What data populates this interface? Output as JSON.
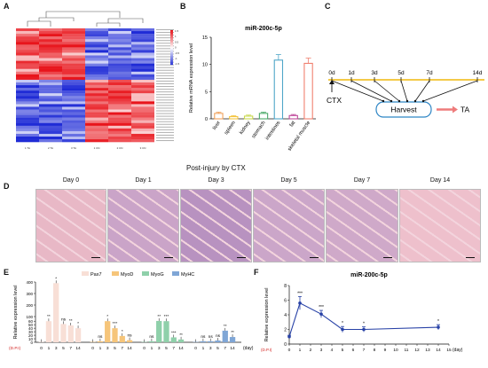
{
  "panels": {
    "a": "A",
    "b": "B",
    "c": "C",
    "d": "D",
    "e": "E",
    "f": "F"
  },
  "heatmap": {
    "colorbar_ticks": [
      "1.5",
      "1",
      "0.5",
      "0",
      "-0.5",
      "-1",
      "-1.5"
    ],
    "column_labels": [
      "1 TA",
      "2 TA",
      "3 TA",
      "1 CN",
      "2 CN",
      "3 CN"
    ],
    "colors": {
      "high": "#e8141b",
      "mid": "#ffffff",
      "low": "#1f2bd6"
    }
  },
  "chart_b": {
    "type": "bar",
    "title": "miR-200c-5p",
    "ylabel": "Relative mRNA expression level",
    "ylim": [
      0,
      15
    ],
    "yticks": [
      "0",
      "5",
      "10",
      "15"
    ],
    "categories": [
      "liver",
      "spleen",
      "kidney",
      "stomach",
      "intestines",
      "fat",
      "skeletal muscle"
    ],
    "values": [
      1.0,
      0.4,
      0.5,
      1.0,
      10.8,
      0.6,
      10.2
    ],
    "colors": [
      "#f0a35e",
      "#f4c542",
      "#c9d84e",
      "#4daa6a",
      "#4fa6c8",
      "#c04a9b",
      "#f08070"
    ]
  },
  "diagram_c": {
    "days": [
      "0d",
      "1d",
      "3d",
      "5d",
      "7d",
      "14d"
    ],
    "injury": "CTX",
    "harvest": "Harvest",
    "target": "TA"
  },
  "panel_d": {
    "title": "Post-injury by CTX",
    "days": [
      "Day 0",
      "Day 1",
      "Day 3",
      "Day 5",
      "Day 7",
      "Day 14"
    ]
  },
  "chart_e": {
    "type": "bar",
    "ylabel": "Relative expression level",
    "yticks": [
      "0",
      "10",
      "20",
      "30",
      "40",
      "50",
      "60",
      "100",
      "200",
      "300",
      "400"
    ],
    "x_prefix": "(D.P.I)",
    "x_unit": "(day)",
    "legend": [
      "Pax7",
      "MyoD",
      "MyoG",
      "MyHC"
    ],
    "series": [
      {
        "name": "Pax7",
        "x": [
          "0",
          "1",
          "3",
          "5",
          "7",
          "14"
        ],
        "values": [
          1,
          60,
          390,
          52,
          48,
          40
        ],
        "sig": [
          "",
          "**",
          "*",
          "ns",
          "**",
          "*"
        ]
      },
      {
        "name": "MyoD",
        "x": [
          "0",
          "1",
          "3",
          "5",
          "7",
          "14"
        ],
        "values": [
          1,
          3,
          60,
          40,
          18,
          6
        ],
        "sig": [
          "",
          "ns",
          "*",
          "***",
          "*",
          "ns"
        ]
      },
      {
        "name": "MyoG",
        "x": [
          "0",
          "1",
          "3",
          "5",
          "7",
          "14"
        ],
        "values": [
          1,
          3,
          62,
          60,
          14,
          8
        ],
        "sig": [
          "",
          "ns",
          "**",
          "***",
          "***",
          "**"
        ]
      },
      {
        "name": "MyHC",
        "x": [
          "0",
          "1",
          "3",
          "5",
          "7",
          "14"
        ],
        "values": [
          1,
          3,
          3,
          5,
          33,
          15
        ],
        "sig": [
          "",
          "ns",
          "ns",
          "ns",
          "**",
          "**"
        ]
      }
    ],
    "colors": [
      "#f8dfd6",
      "#f6c57a",
      "#8fd0aa",
      "#7fa6d6"
    ]
  },
  "chart_f": {
    "type": "line",
    "title": "miR-200c-5p",
    "ylabel": "Relative expression level",
    "ylim": [
      0,
      8
    ],
    "yticks": [
      "0",
      "2",
      "4",
      "6",
      "8"
    ],
    "x_prefix": "(D.P.I)",
    "x_unit": "(day)",
    "xticks": [
      "0",
      "1",
      "2",
      "3",
      "4",
      "5",
      "6",
      "7",
      "8",
      "9",
      "10",
      "11",
      "12",
      "13",
      "14",
      "15"
    ],
    "points": [
      {
        "x": 0,
        "y": 1.0,
        "err": 0.2,
        "sig": ""
      },
      {
        "x": 1,
        "y": 5.6,
        "err": 0.9,
        "sig": "***"
      },
      {
        "x": 3,
        "y": 4.1,
        "err": 0.5,
        "sig": "***"
      },
      {
        "x": 5,
        "y": 2.0,
        "err": 0.4,
        "sig": "*"
      },
      {
        "x": 7,
        "y": 2.0,
        "err": 0.35,
        "sig": "*"
      },
      {
        "x": 14,
        "y": 2.3,
        "err": 0.35,
        "sig": "*"
      }
    ],
    "color": "#2741a6"
  }
}
